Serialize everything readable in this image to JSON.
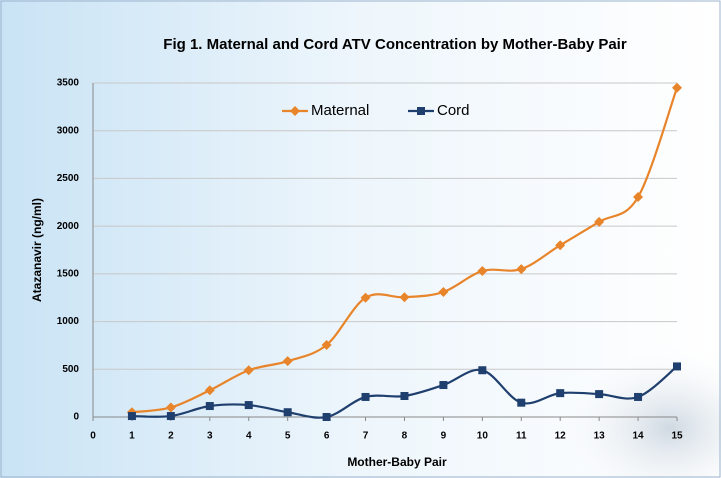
{
  "chart_data": {
    "type": "line",
    "title": "Fig 1. Maternal and Cord ATV Concentration by Mother-Baby Pair",
    "x_label": "Mother-Baby Pair",
    "y_label": "Atazanavir (ng/ml)",
    "x": [
      1,
      2,
      3,
      4,
      5,
      6,
      7,
      8,
      9,
      10,
      11,
      12,
      13,
      14,
      15
    ],
    "series": [
      {
        "name": "Maternal",
        "color": "#e8842a",
        "marker": "diamond",
        "values": [
          50,
          100,
          280,
          490,
          585,
          755,
          1250,
          1255,
          1310,
          1530,
          1550,
          1800,
          2045,
          2305,
          3450
        ]
      },
      {
        "name": "Cord",
        "color": "#1f3f6e",
        "marker": "square",
        "values": [
          10,
          10,
          115,
          125,
          50,
          0,
          210,
          220,
          335,
          490,
          150,
          250,
          240,
          210,
          530
        ]
      }
    ],
    "xlim": [
      0,
      15
    ],
    "xticks": [
      0,
      1,
      2,
      3,
      4,
      5,
      6,
      7,
      8,
      9,
      10,
      11,
      12,
      13,
      14,
      15
    ],
    "ylim": [
      0,
      3500
    ],
    "yticks": [
      0,
      500,
      1000,
      1500,
      2000,
      2500,
      3000,
      3500
    ],
    "grid": true,
    "smooth": true
  }
}
